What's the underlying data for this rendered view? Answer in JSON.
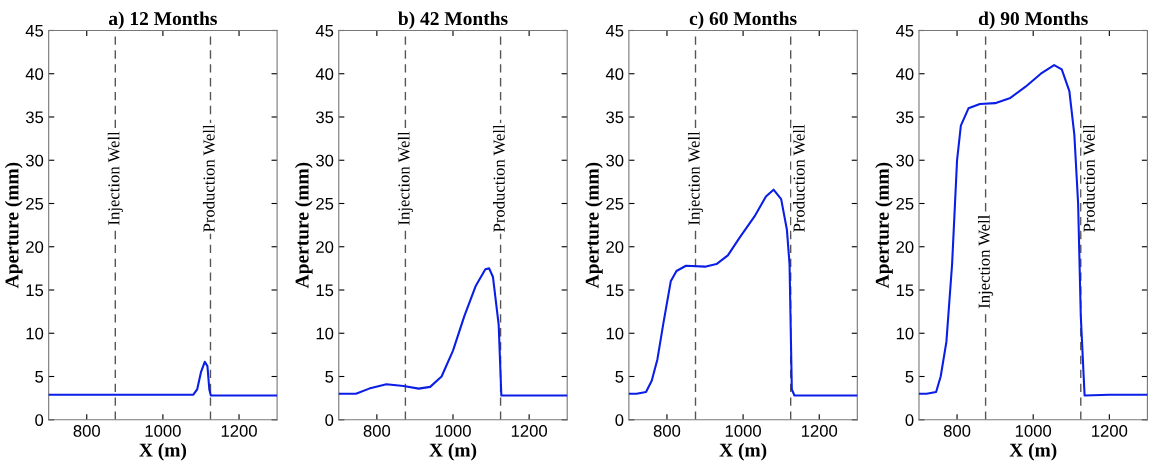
{
  "chart_data": [
    {
      "type": "line",
      "title": "a) 12 Months",
      "xlabel": "X (m)",
      "ylabel": "Aperture (mm)",
      "xlim": [
        700,
        1300
      ],
      "xticks": [
        800,
        1000,
        1200
      ],
      "ylim": [
        0,
        45
      ],
      "yticks": [
        0,
        5,
        10,
        15,
        20,
        25,
        30,
        35,
        40,
        45
      ],
      "grid": false,
      "legend": false,
      "line_style": "solid",
      "marker": "none",
      "series": [
        {
          "color": "#0a1ee6",
          "x": [
            700,
            800,
            900,
            1000,
            1080,
            1090,
            1100,
            1110,
            1117,
            1122,
            1126,
            1200,
            1300
          ],
          "values": [
            2.9,
            2.9,
            2.9,
            2.9,
            2.9,
            3.5,
            5.5,
            6.7,
            6.2,
            3.5,
            2.8,
            2.8,
            2.8
          ]
        }
      ],
      "ref_lines": [
        {
          "axis": "x",
          "value": 875,
          "label": "Injection Well",
          "color": "#555555",
          "line_style": "dashed"
        },
        {
          "axis": "x",
          "value": 1125,
          "label": "Production Well",
          "color": "#555555",
          "line_style": "dashed"
        }
      ]
    },
    {
      "type": "line",
      "title": "b) 42 Months",
      "xlabel": "X (m)",
      "ylabel": "Aperture (mm)",
      "xlim": [
        700,
        1300
      ],
      "xticks": [
        800,
        1000,
        1200
      ],
      "ylim": [
        0,
        45
      ],
      "yticks": [
        0,
        5,
        10,
        15,
        20,
        25,
        30,
        35,
        40,
        45
      ],
      "grid": false,
      "legend": false,
      "line_style": "solid",
      "marker": "none",
      "series": [
        {
          "color": "#0a1ee6",
          "x": [
            700,
            745,
            780,
            825,
            870,
            910,
            940,
            970,
            1000,
            1030,
            1060,
            1085,
            1095,
            1105,
            1120,
            1127,
            1200,
            1300
          ],
          "values": [
            3.0,
            3.0,
            3.6,
            4.1,
            3.9,
            3.6,
            3.8,
            5.0,
            8.0,
            12.0,
            15.5,
            17.4,
            17.5,
            16.5,
            11.0,
            2.8,
            2.8,
            2.8
          ]
        }
      ],
      "ref_lines": [
        {
          "axis": "x",
          "value": 875,
          "label": "Injection Well",
          "color": "#555555",
          "line_style": "dashed"
        },
        {
          "axis": "x",
          "value": 1125,
          "label": "Production Well",
          "color": "#555555",
          "line_style": "dashed"
        }
      ]
    },
    {
      "type": "line",
      "title": "c) 60 Months",
      "xlabel": "X (m)",
      "ylabel": "Aperture (mm)",
      "xlim": [
        700,
        1300
      ],
      "xticks": [
        800,
        1000,
        1200
      ],
      "ylim": [
        0,
        45
      ],
      "yticks": [
        0,
        5,
        10,
        15,
        20,
        25,
        30,
        35,
        40,
        45
      ],
      "grid": false,
      "legend": false,
      "line_style": "solid",
      "marker": "none",
      "series": [
        {
          "color": "#0a1ee6",
          "x": [
            700,
            720,
            745,
            760,
            775,
            790,
            810,
            825,
            850,
            900,
            930,
            960,
            990,
            1030,
            1060,
            1080,
            1100,
            1115,
            1122,
            1128,
            1135,
            1200,
            1300
          ],
          "values": [
            3.0,
            3.0,
            3.2,
            4.5,
            7.0,
            11.0,
            16.0,
            17.2,
            17.8,
            17.7,
            18.0,
            19.0,
            21.0,
            23.5,
            25.8,
            26.6,
            25.5,
            22.0,
            18.0,
            3.5,
            2.8,
            2.8,
            2.8
          ]
        }
      ],
      "ref_lines": [
        {
          "axis": "x",
          "value": 875,
          "label": "Injection Well",
          "color": "#555555",
          "line_style": "dashed"
        },
        {
          "axis": "x",
          "value": 1125,
          "label": "Production Well",
          "color": "#555555",
          "line_style": "dashed"
        }
      ]
    },
    {
      "type": "line",
      "title": "d) 90 Months",
      "xlabel": "X (m)",
      "ylabel": "Aperture (mm)",
      "xlim": [
        700,
        1300
      ],
      "xticks": [
        800,
        1000,
        1200
      ],
      "ylim": [
        0,
        45
      ],
      "yticks": [
        0,
        5,
        10,
        15,
        20,
        25,
        30,
        35,
        40,
        45
      ],
      "grid": false,
      "legend": false,
      "line_style": "solid",
      "marker": "none",
      "series": [
        {
          "color": "#0a1ee6",
          "x": [
            700,
            720,
            745,
            757,
            772,
            787,
            800,
            810,
            830,
            860,
            900,
            940,
            980,
            1020,
            1055,
            1075,
            1095,
            1108,
            1118,
            1125,
            1135,
            1200,
            1300
          ],
          "values": [
            3.0,
            3.0,
            3.2,
            5.0,
            9.0,
            18.0,
            30.0,
            34.0,
            36.0,
            36.5,
            36.6,
            37.2,
            38.5,
            40.0,
            41.0,
            40.5,
            38.0,
            33.0,
            25.0,
            12.0,
            2.8,
            2.9,
            2.9
          ]
        }
      ],
      "ref_lines": [
        {
          "axis": "x",
          "value": 875,
          "label": "Injection Well",
          "color": "#555555",
          "line_style": "dashed"
        },
        {
          "axis": "x",
          "value": 1125,
          "label": "Production Well",
          "color": "#555555",
          "line_style": "dashed"
        }
      ]
    }
  ]
}
